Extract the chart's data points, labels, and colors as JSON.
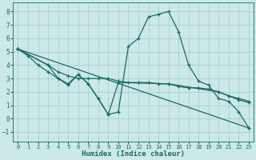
{
  "xlabel": "Humidex (Indice chaleur)",
  "background_color": "#cce8e8",
  "grid_color": "#aacfcf",
  "line_color": "#1a6b60",
  "xlim": [
    -0.5,
    23.5
  ],
  "ylim": [
    -1.7,
    8.7
  ],
  "yticks": [
    -1,
    0,
    1,
    2,
    3,
    4,
    5,
    6,
    7,
    8
  ],
  "xticks": [
    0,
    1,
    2,
    3,
    4,
    5,
    6,
    7,
    8,
    9,
    10,
    11,
    12,
    13,
    14,
    15,
    16,
    17,
    18,
    19,
    20,
    21,
    22,
    23
  ],
  "lines": [
    {
      "x": [
        0,
        1,
        2,
        3,
        4,
        5,
        6,
        7,
        8,
        9,
        10,
        11,
        12,
        13,
        14,
        15,
        16,
        17,
        18,
        19,
        20,
        21,
        22,
        23
      ],
      "y": [
        5.2,
        4.7,
        4.0,
        3.5,
        3.0,
        2.6,
        3.3,
        2.6,
        1.5,
        0.3,
        0.5,
        5.4,
        6.0,
        7.6,
        7.8,
        8.0,
        6.5,
        4.0,
        2.8,
        2.5,
        1.5,
        1.3,
        0.5,
        -0.7
      ]
    },
    {
      "x": [
        0,
        23
      ],
      "y": [
        5.2,
        -0.7
      ]
    },
    {
      "x": [
        0,
        3,
        4,
        5,
        6,
        7,
        8,
        9,
        10,
        11,
        12,
        13,
        14,
        15,
        16,
        17,
        18,
        19,
        20,
        21,
        22,
        23
      ],
      "y": [
        5.2,
        4.0,
        3.5,
        3.2,
        3.0,
        3.0,
        3.0,
        3.0,
        2.8,
        2.7,
        2.7,
        2.7,
        2.6,
        2.6,
        2.4,
        2.3,
        2.3,
        2.2,
        2.0,
        1.7,
        1.5,
        1.3
      ]
    },
    {
      "x": [
        0,
        3,
        4,
        5,
        6,
        7,
        8,
        9,
        10,
        15,
        20,
        21,
        22,
        23
      ],
      "y": [
        5.2,
        4.0,
        3.0,
        2.5,
        3.3,
        2.6,
        1.5,
        0.3,
        2.7,
        2.6,
        2.0,
        1.7,
        1.4,
        1.2
      ]
    }
  ]
}
